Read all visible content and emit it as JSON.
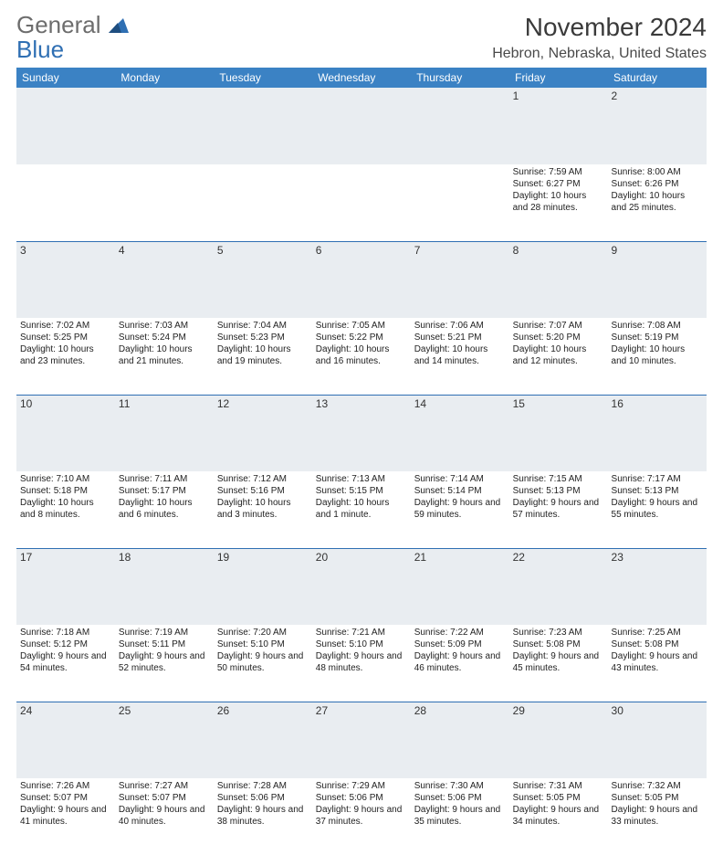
{
  "logo": {
    "word1": "General",
    "word2": "Blue"
  },
  "title": "November 2024",
  "location": "Hebron, Nebraska, United States",
  "colors": {
    "header_bg": "#3b82c4",
    "header_text": "#ffffff",
    "daynum_bg": "#e9edf1",
    "rule": "#2f6fb3",
    "logo_gray": "#6d6d6d",
    "logo_blue": "#2f6fb3"
  },
  "weekdays": [
    "Sunday",
    "Monday",
    "Tuesday",
    "Wednesday",
    "Thursday",
    "Friday",
    "Saturday"
  ],
  "weeks": [
    [
      {
        "day": "",
        "sunrise": "",
        "sunset": "",
        "daylight": ""
      },
      {
        "day": "",
        "sunrise": "",
        "sunset": "",
        "daylight": ""
      },
      {
        "day": "",
        "sunrise": "",
        "sunset": "",
        "daylight": ""
      },
      {
        "day": "",
        "sunrise": "",
        "sunset": "",
        "daylight": ""
      },
      {
        "day": "",
        "sunrise": "",
        "sunset": "",
        "daylight": ""
      },
      {
        "day": "1",
        "sunrise": "Sunrise: 7:59 AM",
        "sunset": "Sunset: 6:27 PM",
        "daylight": "Daylight: 10 hours and 28 minutes."
      },
      {
        "day": "2",
        "sunrise": "Sunrise: 8:00 AM",
        "sunset": "Sunset: 6:26 PM",
        "daylight": "Daylight: 10 hours and 25 minutes."
      }
    ],
    [
      {
        "day": "3",
        "sunrise": "Sunrise: 7:02 AM",
        "sunset": "Sunset: 5:25 PM",
        "daylight": "Daylight: 10 hours and 23 minutes."
      },
      {
        "day": "4",
        "sunrise": "Sunrise: 7:03 AM",
        "sunset": "Sunset: 5:24 PM",
        "daylight": "Daylight: 10 hours and 21 minutes."
      },
      {
        "day": "5",
        "sunrise": "Sunrise: 7:04 AM",
        "sunset": "Sunset: 5:23 PM",
        "daylight": "Daylight: 10 hours and 19 minutes."
      },
      {
        "day": "6",
        "sunrise": "Sunrise: 7:05 AM",
        "sunset": "Sunset: 5:22 PM",
        "daylight": "Daylight: 10 hours and 16 minutes."
      },
      {
        "day": "7",
        "sunrise": "Sunrise: 7:06 AM",
        "sunset": "Sunset: 5:21 PM",
        "daylight": "Daylight: 10 hours and 14 minutes."
      },
      {
        "day": "8",
        "sunrise": "Sunrise: 7:07 AM",
        "sunset": "Sunset: 5:20 PM",
        "daylight": "Daylight: 10 hours and 12 minutes."
      },
      {
        "day": "9",
        "sunrise": "Sunrise: 7:08 AM",
        "sunset": "Sunset: 5:19 PM",
        "daylight": "Daylight: 10 hours and 10 minutes."
      }
    ],
    [
      {
        "day": "10",
        "sunrise": "Sunrise: 7:10 AM",
        "sunset": "Sunset: 5:18 PM",
        "daylight": "Daylight: 10 hours and 8 minutes."
      },
      {
        "day": "11",
        "sunrise": "Sunrise: 7:11 AM",
        "sunset": "Sunset: 5:17 PM",
        "daylight": "Daylight: 10 hours and 6 minutes."
      },
      {
        "day": "12",
        "sunrise": "Sunrise: 7:12 AM",
        "sunset": "Sunset: 5:16 PM",
        "daylight": "Daylight: 10 hours and 3 minutes."
      },
      {
        "day": "13",
        "sunrise": "Sunrise: 7:13 AM",
        "sunset": "Sunset: 5:15 PM",
        "daylight": "Daylight: 10 hours and 1 minute."
      },
      {
        "day": "14",
        "sunrise": "Sunrise: 7:14 AM",
        "sunset": "Sunset: 5:14 PM",
        "daylight": "Daylight: 9 hours and 59 minutes."
      },
      {
        "day": "15",
        "sunrise": "Sunrise: 7:15 AM",
        "sunset": "Sunset: 5:13 PM",
        "daylight": "Daylight: 9 hours and 57 minutes."
      },
      {
        "day": "16",
        "sunrise": "Sunrise: 7:17 AM",
        "sunset": "Sunset: 5:13 PM",
        "daylight": "Daylight: 9 hours and 55 minutes."
      }
    ],
    [
      {
        "day": "17",
        "sunrise": "Sunrise: 7:18 AM",
        "sunset": "Sunset: 5:12 PM",
        "daylight": "Daylight: 9 hours and 54 minutes."
      },
      {
        "day": "18",
        "sunrise": "Sunrise: 7:19 AM",
        "sunset": "Sunset: 5:11 PM",
        "daylight": "Daylight: 9 hours and 52 minutes."
      },
      {
        "day": "19",
        "sunrise": "Sunrise: 7:20 AM",
        "sunset": "Sunset: 5:10 PM",
        "daylight": "Daylight: 9 hours and 50 minutes."
      },
      {
        "day": "20",
        "sunrise": "Sunrise: 7:21 AM",
        "sunset": "Sunset: 5:10 PM",
        "daylight": "Daylight: 9 hours and 48 minutes."
      },
      {
        "day": "21",
        "sunrise": "Sunrise: 7:22 AM",
        "sunset": "Sunset: 5:09 PM",
        "daylight": "Daylight: 9 hours and 46 minutes."
      },
      {
        "day": "22",
        "sunrise": "Sunrise: 7:23 AM",
        "sunset": "Sunset: 5:08 PM",
        "daylight": "Daylight: 9 hours and 45 minutes."
      },
      {
        "day": "23",
        "sunrise": "Sunrise: 7:25 AM",
        "sunset": "Sunset: 5:08 PM",
        "daylight": "Daylight: 9 hours and 43 minutes."
      }
    ],
    [
      {
        "day": "24",
        "sunrise": "Sunrise: 7:26 AM",
        "sunset": "Sunset: 5:07 PM",
        "daylight": "Daylight: 9 hours and 41 minutes."
      },
      {
        "day": "25",
        "sunrise": "Sunrise: 7:27 AM",
        "sunset": "Sunset: 5:07 PM",
        "daylight": "Daylight: 9 hours and 40 minutes."
      },
      {
        "day": "26",
        "sunrise": "Sunrise: 7:28 AM",
        "sunset": "Sunset: 5:06 PM",
        "daylight": "Daylight: 9 hours and 38 minutes."
      },
      {
        "day": "27",
        "sunrise": "Sunrise: 7:29 AM",
        "sunset": "Sunset: 5:06 PM",
        "daylight": "Daylight: 9 hours and 37 minutes."
      },
      {
        "day": "28",
        "sunrise": "Sunrise: 7:30 AM",
        "sunset": "Sunset: 5:06 PM",
        "daylight": "Daylight: 9 hours and 35 minutes."
      },
      {
        "day": "29",
        "sunrise": "Sunrise: 7:31 AM",
        "sunset": "Sunset: 5:05 PM",
        "daylight": "Daylight: 9 hours and 34 minutes."
      },
      {
        "day": "30",
        "sunrise": "Sunrise: 7:32 AM",
        "sunset": "Sunset: 5:05 PM",
        "daylight": "Daylight: 9 hours and 33 minutes."
      }
    ]
  ]
}
